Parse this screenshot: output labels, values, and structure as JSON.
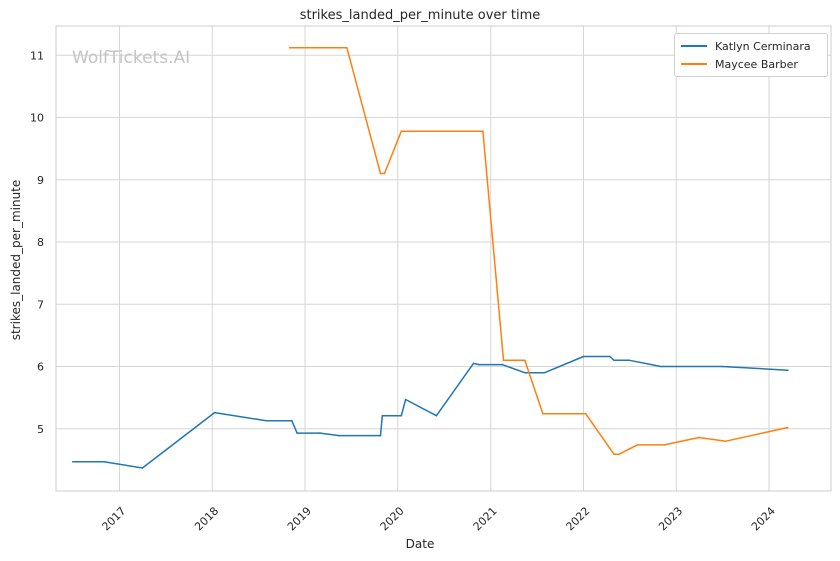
{
  "title": "strikes_landed_per_minute over time",
  "watermark": "WolfTickets.AI",
  "chart_data": {
    "type": "line",
    "title": "strikes_landed_per_minute over time",
    "xlabel": "Date",
    "ylabel": "strikes_landed_per_minute",
    "x_ticks": [
      "2017",
      "2018",
      "2019",
      "2020",
      "2021",
      "2022",
      "2023",
      "2024"
    ],
    "y_ticks": [
      5,
      6,
      7,
      8,
      9,
      10,
      11
    ],
    "xlim": [
      "2016-04-26",
      "2024-09-01"
    ],
    "ylim": [
      4.0,
      11.47
    ],
    "grid": true,
    "legend_position": "top-right",
    "series": [
      {
        "name": "Katlyn Cerminara",
        "color": "#1f77b4",
        "points": [
          [
            "2016-07-01",
            4.47
          ],
          [
            "2016-11-01",
            4.47
          ],
          [
            "2017-04-01",
            4.37
          ],
          [
            "2018-01-10",
            5.26
          ],
          [
            "2018-08-01",
            5.13
          ],
          [
            "2018-11-10",
            5.13
          ],
          [
            "2018-12-01",
            4.93
          ],
          [
            "2019-03-01",
            4.93
          ],
          [
            "2019-05-15",
            4.89
          ],
          [
            "2019-10-25",
            4.89
          ],
          [
            "2019-11-01",
            5.21
          ],
          [
            "2020-01-15",
            5.21
          ],
          [
            "2020-02-01",
            5.47
          ],
          [
            "2020-06-01",
            5.21
          ],
          [
            "2020-10-25",
            6.05
          ],
          [
            "2020-11-15",
            6.03
          ],
          [
            "2021-02-15",
            6.03
          ],
          [
            "2021-05-15",
            5.9
          ],
          [
            "2021-08-01",
            5.9
          ],
          [
            "2022-01-01",
            6.16
          ],
          [
            "2022-04-15",
            6.16
          ],
          [
            "2022-05-01",
            6.1
          ],
          [
            "2022-07-01",
            6.1
          ],
          [
            "2022-11-01",
            6.0
          ],
          [
            "2023-07-01",
            6.0
          ],
          [
            "2024-03-15",
            5.94
          ]
        ]
      },
      {
        "name": "Maycee Barber",
        "color": "#ff7f0e",
        "points": [
          [
            "2018-11-01",
            11.12
          ],
          [
            "2019-06-15",
            11.12
          ],
          [
            "2019-10-25",
            9.1
          ],
          [
            "2019-11-10",
            9.1
          ],
          [
            "2020-01-15",
            9.78
          ],
          [
            "2020-12-01",
            9.78
          ],
          [
            "2021-02-20",
            6.1
          ],
          [
            "2021-05-15",
            6.1
          ],
          [
            "2021-07-25",
            5.24
          ],
          [
            "2022-01-10",
            5.24
          ],
          [
            "2022-05-01",
            4.59
          ],
          [
            "2022-05-20",
            4.59
          ],
          [
            "2022-08-01",
            4.74
          ],
          [
            "2022-11-15",
            4.74
          ],
          [
            "2023-04-01",
            4.86
          ],
          [
            "2023-07-15",
            4.8
          ],
          [
            "2024-03-15",
            5.02
          ]
        ]
      }
    ]
  }
}
